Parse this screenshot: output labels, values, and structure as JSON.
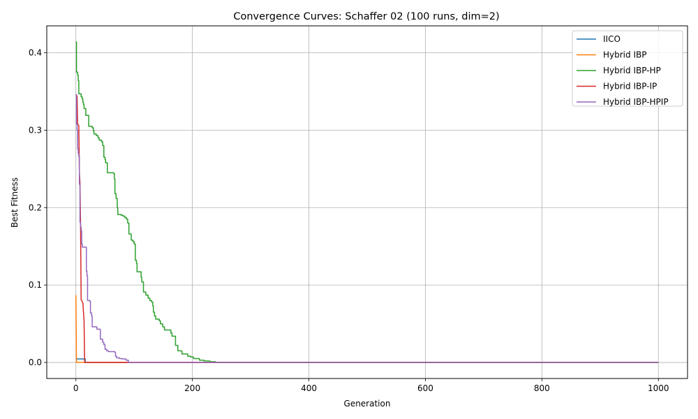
{
  "chart_data": {
    "type": "line",
    "title": "Convergence Curves: Schaffer 02 (100 runs, dim=2)",
    "xlabel": "Generation",
    "ylabel": "Best Fitness",
    "xlim": [
      -50,
      1050
    ],
    "ylim": [
      -0.0207,
      0.4347
    ],
    "xticks": [
      0,
      200,
      400,
      600,
      800,
      1000
    ],
    "yticks": [
      0.0,
      0.1,
      0.2,
      0.3,
      0.4
    ],
    "xtick_labels": [
      "0",
      "200",
      "400",
      "600",
      "800",
      "1000"
    ],
    "ytick_labels": [
      "0.0",
      "0.1",
      "0.2",
      "0.3",
      "0.4"
    ],
    "grid": true,
    "legend_position": "top-right",
    "series": [
      {
        "name": "IICO",
        "color": "#1f77b4",
        "step": true,
        "points": [
          [
            0,
            0.0045
          ],
          [
            15,
            0.0045
          ],
          [
            16,
            0.0
          ],
          [
            1000,
            0.0
          ]
        ]
      },
      {
        "name": "Hybrid IBP",
        "color": "#ff7f0e",
        "step": false,
        "points": [
          [
            0,
            0.087
          ],
          [
            1,
            0.0
          ],
          [
            1000,
            0.0
          ]
        ]
      },
      {
        "name": "Hybrid IBP-HP",
        "color": "#2ca02c",
        "step": true,
        "points": [
          [
            0,
            0.414
          ],
          [
            1,
            0.375
          ],
          [
            3,
            0.371
          ],
          [
            4,
            0.364
          ],
          [
            5,
            0.347
          ],
          [
            8,
            0.347
          ],
          [
            9,
            0.343
          ],
          [
            11,
            0.34
          ],
          [
            12,
            0.336
          ],
          [
            13,
            0.333
          ],
          [
            14,
            0.328
          ],
          [
            17,
            0.319
          ],
          [
            22,
            0.305
          ],
          [
            28,
            0.303
          ],
          [
            30,
            0.299
          ],
          [
            31,
            0.295
          ],
          [
            35,
            0.293
          ],
          [
            38,
            0.29
          ],
          [
            40,
            0.287
          ],
          [
            44,
            0.285
          ],
          [
            46,
            0.28
          ],
          [
            48,
            0.265
          ],
          [
            50,
            0.262
          ],
          [
            51,
            0.258
          ],
          [
            54,
            0.245
          ],
          [
            65,
            0.244
          ],
          [
            66,
            0.237
          ],
          [
            67,
            0.218
          ],
          [
            69,
            0.212
          ],
          [
            71,
            0.2
          ],
          [
            72,
            0.191
          ],
          [
            78,
            0.19
          ],
          [
            81,
            0.189
          ],
          [
            84,
            0.187
          ],
          [
            87,
            0.185
          ],
          [
            89,
            0.18
          ],
          [
            91,
            0.166
          ],
          [
            95,
            0.158
          ],
          [
            98,
            0.156
          ],
          [
            100,
            0.153
          ],
          [
            102,
            0.132
          ],
          [
            104,
            0.128
          ],
          [
            105,
            0.117
          ],
          [
            112,
            0.11
          ],
          [
            113,
            0.104
          ],
          [
            116,
            0.091
          ],
          [
            120,
            0.087
          ],
          [
            124,
            0.083
          ],
          [
            127,
            0.08
          ],
          [
            130,
            0.078
          ],
          [
            132,
            0.073
          ],
          [
            133,
            0.065
          ],
          [
            135,
            0.06
          ],
          [
            137,
            0.056
          ],
          [
            143,
            0.054
          ],
          [
            145,
            0.05
          ],
          [
            149,
            0.046
          ],
          [
            152,
            0.042
          ],
          [
            163,
            0.038
          ],
          [
            165,
            0.034
          ],
          [
            171,
            0.022
          ],
          [
            175,
            0.015
          ],
          [
            182,
            0.011
          ],
          [
            192,
            0.008
          ],
          [
            197,
            0.007
          ],
          [
            202,
            0.005
          ],
          [
            212,
            0.003
          ],
          [
            220,
            0.002
          ],
          [
            230,
            0.001
          ],
          [
            240,
            0.0
          ],
          [
            1000,
            0.0
          ]
        ]
      },
      {
        "name": "Hybrid IBP-IP",
        "color": "#d62728",
        "step": false,
        "points": [
          [
            0,
            0.346
          ],
          [
            1,
            0.345
          ],
          [
            2,
            0.344
          ],
          [
            3,
            0.308
          ],
          [
            4,
            0.307
          ],
          [
            5,
            0.306
          ],
          [
            6,
            0.246
          ],
          [
            7,
            0.232
          ],
          [
            8,
            0.178
          ],
          [
            9,
            0.081
          ],
          [
            10,
            0.08
          ],
          [
            12,
            0.077
          ],
          [
            13,
            0.065
          ],
          [
            14,
            0.055
          ],
          [
            15,
            0.0
          ],
          [
            1000,
            0.0
          ]
        ]
      },
      {
        "name": "Hybrid IBP-HPIP",
        "color": "#9467bd",
        "step": true,
        "points": [
          [
            0,
            0.346
          ],
          [
            1,
            0.308
          ],
          [
            2,
            0.3
          ],
          [
            3,
            0.276
          ],
          [
            4,
            0.27
          ],
          [
            5,
            0.266
          ],
          [
            6,
            0.23
          ],
          [
            7,
            0.181
          ],
          [
            8,
            0.175
          ],
          [
            9,
            0.17
          ],
          [
            10,
            0.153
          ],
          [
            11,
            0.149
          ],
          [
            18,
            0.118
          ],
          [
            19,
            0.112
          ],
          [
            20,
            0.08
          ],
          [
            24,
            0.079
          ],
          [
            25,
            0.064
          ],
          [
            27,
            0.06
          ],
          [
            28,
            0.046
          ],
          [
            36,
            0.043
          ],
          [
            42,
            0.03
          ],
          [
            46,
            0.026
          ],
          [
            48,
            0.023
          ],
          [
            50,
            0.017
          ],
          [
            53,
            0.015
          ],
          [
            56,
            0.014
          ],
          [
            67,
            0.013
          ],
          [
            68,
            0.008
          ],
          [
            70,
            0.006
          ],
          [
            75,
            0.005
          ],
          [
            80,
            0.0045
          ],
          [
            86,
            0.003
          ],
          [
            90,
            0.0
          ],
          [
            1000,
            0.0
          ]
        ]
      }
    ]
  }
}
